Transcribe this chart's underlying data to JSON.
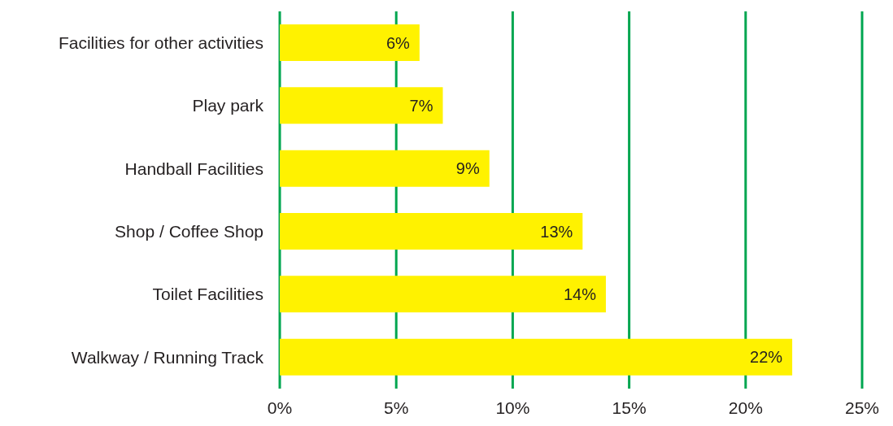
{
  "chart_data": {
    "type": "bar",
    "orientation": "horizontal",
    "categories": [
      "Facilities for other activities",
      "Play park",
      "Handball Facilities",
      "Shop / Coffee Shop",
      "Toilet Facilities",
      "Walkway / Running Track"
    ],
    "values": [
      6,
      7,
      9,
      13,
      14,
      22
    ],
    "value_labels": [
      "6%",
      "7%",
      "9%",
      "13%",
      "14%",
      "22%"
    ],
    "color": "#fff200",
    "xlim": [
      0,
      25
    ],
    "xticks": [
      {
        "value": 0,
        "label": "0%"
      },
      {
        "value": 5,
        "label": "5%"
      },
      {
        "value": 10,
        "label": "10%"
      },
      {
        "value": 15,
        "label": "15%"
      },
      {
        "value": 20,
        "label": "20%"
      },
      {
        "value": 25,
        "label": "25%"
      }
    ],
    "grid": "x"
  }
}
